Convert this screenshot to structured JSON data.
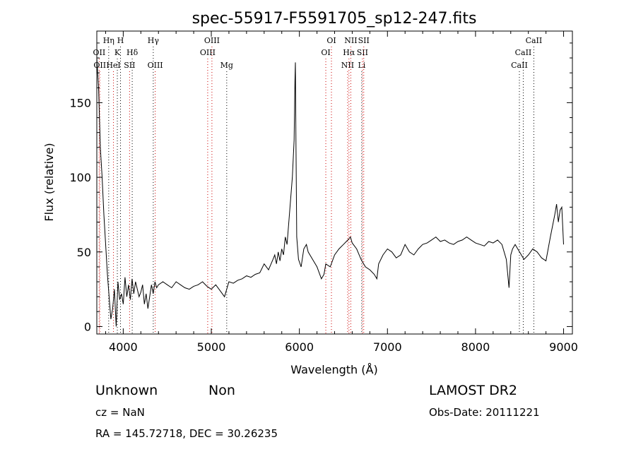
{
  "chart_data": {
    "type": "line",
    "title": "spec-55917-F5591705_sp12-247.fits",
    "xlabel": "Wavelength (Å)",
    "ylabel": "Flux (relative)",
    "xlim": [
      3700,
      9100
    ],
    "ylim": [
      -5,
      198
    ],
    "xticks": [
      {
        "value": 4000,
        "label": "4000"
      },
      {
        "value": 5000,
        "label": "5000"
      },
      {
        "value": 6000,
        "label": "6000"
      },
      {
        "value": 7000,
        "label": "7000"
      },
      {
        "value": 8000,
        "label": "8000"
      },
      {
        "value": 9000,
        "label": "9000"
      }
    ],
    "yticks": [
      {
        "value": 0,
        "label": "0"
      },
      {
        "value": 50,
        "label": "50"
      },
      {
        "value": 100,
        "label": "100"
      },
      {
        "value": 150,
        "label": "150"
      }
    ],
    "grid": false,
    "line_color": "#000000",
    "marker_color_emission": "#cc0000",
    "marker_color_absorption": "#000000",
    "series": [
      {
        "x": [
          3700,
          3720,
          3740,
          3760,
          3780,
          3800,
          3820,
          3840,
          3860,
          3880,
          3900,
          3920,
          3940,
          3960,
          3980,
          4000,
          4020,
          4040,
          4060,
          4080,
          4100,
          4120,
          4140,
          4160,
          4180,
          4200,
          4220,
          4240,
          4260,
          4280,
          4300,
          4320,
          4340,
          4360,
          4380,
          4400,
          4450,
          4500,
          4550,
          4600,
          4650,
          4700,
          4750,
          4800,
          4850,
          4900,
          4950,
          5000,
          5050,
          5100,
          5150,
          5200,
          5250,
          5300,
          5350,
          5400,
          5450,
          5500,
          5550,
          5600,
          5650,
          5700,
          5720,
          5740,
          5760,
          5780,
          5800,
          5820,
          5840,
          5860,
          5880,
          5900,
          5920,
          5940,
          5950,
          5955,
          5960,
          5970,
          5990,
          6020,
          6050,
          6080,
          6100,
          6150,
          6200,
          6250,
          6280,
          6300,
          6350,
          6400,
          6450,
          6500,
          6550,
          6580,
          6600,
          6650,
          6700,
          6750,
          6800,
          6850,
          6880,
          6900,
          6950,
          7000,
          7050,
          7100,
          7150,
          7200,
          7250,
          7300,
          7350,
          7400,
          7450,
          7500,
          7550,
          7600,
          7650,
          7700,
          7750,
          7800,
          7850,
          7900,
          7950,
          8000,
          8050,
          8100,
          8150,
          8200,
          8250,
          8300,
          8350,
          8380,
          8400,
          8420,
          8450,
          8500,
          8550,
          8600,
          8650,
          8700,
          8750,
          8800,
          8850,
          8900,
          8920,
          8940,
          8960,
          8980,
          9000
        ],
        "y": [
          180,
          160,
          120,
          100,
          75,
          55,
          35,
          20,
          5,
          12,
          25,
          0,
          30,
          18,
          22,
          15,
          33,
          20,
          28,
          18,
          32,
          22,
          30,
          25,
          20,
          23,
          28,
          15,
          22,
          12,
          20,
          28,
          22,
          30,
          26,
          28,
          30,
          28,
          26,
          30,
          28,
          26,
          25,
          27,
          28,
          30,
          27,
          25,
          28,
          24,
          20,
          30,
          29,
          31,
          32,
          34,
          33,
          35,
          36,
          42,
          38,
          45,
          48,
          42,
          50,
          44,
          52,
          48,
          60,
          55,
          70,
          85,
          100,
          125,
          165,
          177,
          130,
          60,
          45,
          40,
          52,
          55,
          50,
          45,
          40,
          32,
          35,
          42,
          40,
          48,
          52,
          55,
          58,
          60,
          56,
          52,
          45,
          40,
          38,
          35,
          32,
          42,
          48,
          52,
          50,
          46,
          48,
          55,
          50,
          48,
          52,
          55,
          56,
          58,
          60,
          57,
          58,
          56,
          55,
          57,
          58,
          60,
          58,
          56,
          55,
          54,
          57,
          56,
          58,
          55,
          45,
          26,
          48,
          52,
          55,
          50,
          45,
          48,
          52,
          50,
          46,
          44,
          60,
          75,
          82,
          70,
          78,
          80,
          55
        ]
      }
    ],
    "line_markers": [
      {
        "wavelength": 3727,
        "label": "OII",
        "row": 1,
        "kind": "emission"
      },
      {
        "wavelength": 3734,
        "label": "OII",
        "row": 2,
        "kind": "emission"
      },
      {
        "wavelength": 3835,
        "label": "Hη",
        "row": 0,
        "kind": "absorption"
      },
      {
        "wavelength": 3889,
        "label": "HeI",
        "row": 2,
        "kind": "emission"
      },
      {
        "wavelength": 3933,
        "label": "K",
        "row": 1,
        "kind": "absorption"
      },
      {
        "wavelength": 3969,
        "label": "H",
        "row": 0,
        "kind": "absorption"
      },
      {
        "wavelength": 4072,
        "label": "SII",
        "row": 2,
        "kind": "emission"
      },
      {
        "wavelength": 4102,
        "label": "Hδ",
        "row": 1,
        "kind": "absorption"
      },
      {
        "wavelength": 4341,
        "label": "Hγ",
        "row": 0,
        "kind": "absorption"
      },
      {
        "wavelength": 4363,
        "label": "OIII",
        "row": 2,
        "kind": "emission"
      },
      {
        "wavelength": 4959,
        "label": "OIII",
        "row": 1,
        "kind": "emission"
      },
      {
        "wavelength": 5007,
        "label": "OIII",
        "row": 0,
        "kind": "emission"
      },
      {
        "wavelength": 5175,
        "label": "Mg",
        "row": 2,
        "kind": "absorption"
      },
      {
        "wavelength": 6300,
        "label": "OI",
        "row": 1,
        "kind": "emission"
      },
      {
        "wavelength": 6364,
        "label": "OI",
        "row": 0,
        "kind": "emission"
      },
      {
        "wavelength": 6548,
        "label": "NII",
        "row": 2,
        "kind": "emission"
      },
      {
        "wavelength": 6563,
        "label": "Hα",
        "row": 1,
        "kind": "emission"
      },
      {
        "wavelength": 6584,
        "label": "NII",
        "row": 0,
        "kind": "emission"
      },
      {
        "wavelength": 6708,
        "label": "Li",
        "row": 2,
        "kind": "absorption"
      },
      {
        "wavelength": 6716,
        "label": "SII",
        "row": 1,
        "kind": "emission"
      },
      {
        "wavelength": 6731,
        "label": "SII",
        "row": 0,
        "kind": "emission"
      },
      {
        "wavelength": 8498,
        "label": "CaII",
        "row": 2,
        "kind": "absorption"
      },
      {
        "wavelength": 8542,
        "label": "CaII",
        "row": 1,
        "kind": "absorption"
      },
      {
        "wavelength": 8662,
        "label": "CaII",
        "row": 0,
        "kind": "absorption"
      }
    ]
  },
  "info": {
    "class": "Unknown",
    "subclass": "Non",
    "survey": "LAMOST DR2",
    "cz": "cz = NaN",
    "obs_date": "Obs-Date: 20111221",
    "coords": "RA = 145.72718, DEC =  30.26235"
  }
}
